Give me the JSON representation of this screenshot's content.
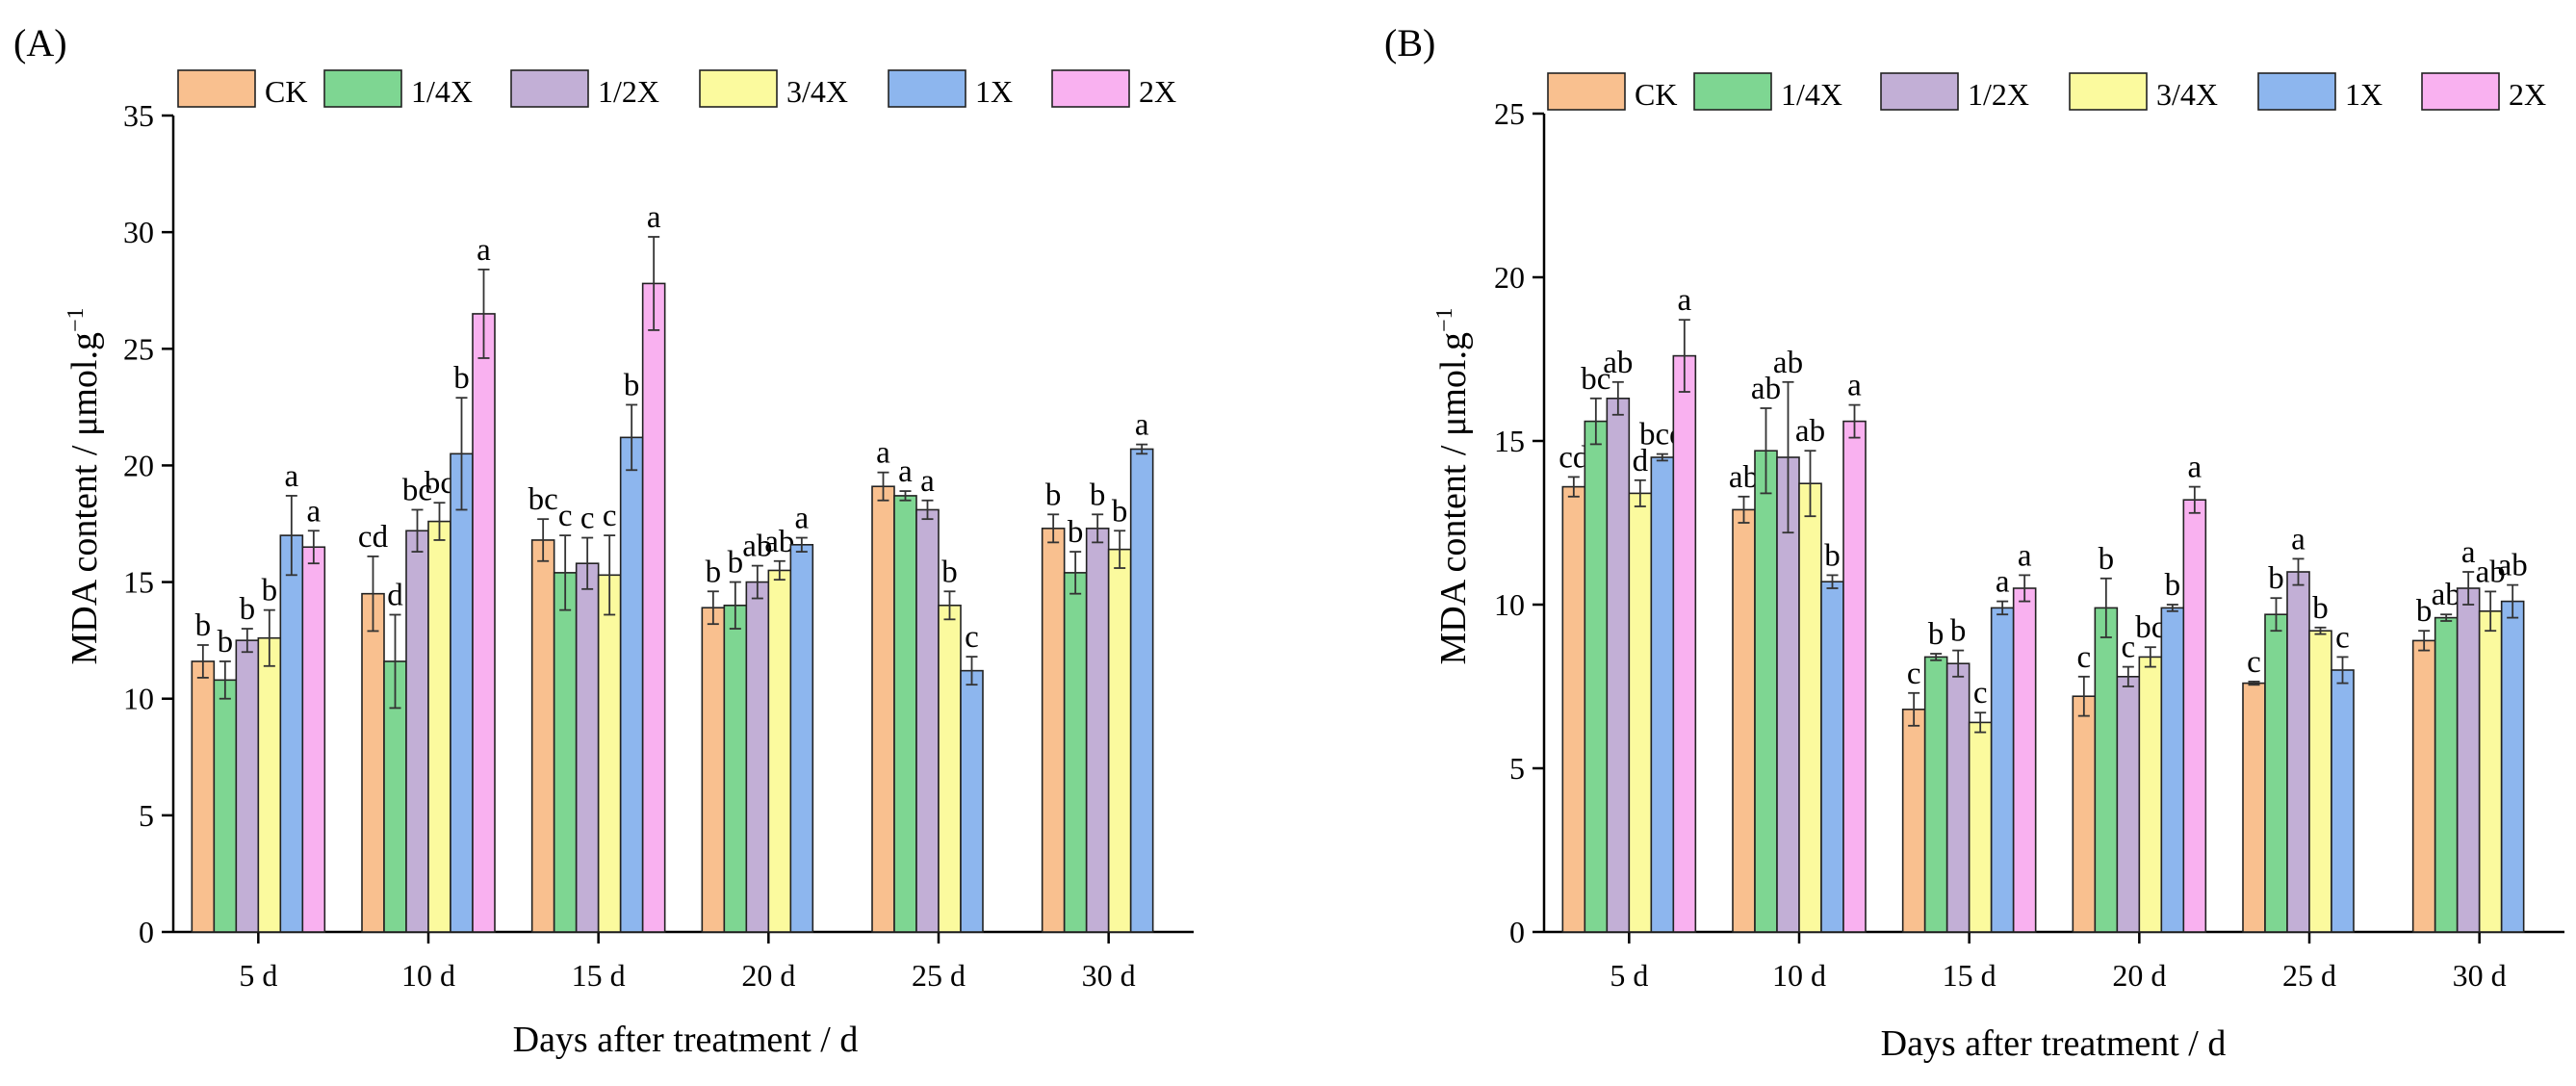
{
  "legend": {
    "series": [
      {
        "name": "CK",
        "color": "#F9C08F"
      },
      {
        "name": "1/4X",
        "color": "#7ED692"
      },
      {
        "name": "1/2X",
        "color": "#C2AFD6"
      },
      {
        "name": "3/4X",
        "color": "#FBFA9E"
      },
      {
        "name": "1X",
        "color": "#8DB6EE"
      },
      {
        "name": "2X",
        "color": "#F9B1F0"
      }
    ]
  },
  "chart_data": [
    {
      "type": "bar",
      "panel_label": "(A)",
      "categories": [
        "5 d",
        "10 d",
        "15 d",
        "20 d",
        "25 d",
        "30 d"
      ],
      "xlabel": "Days after treatment / d",
      "ylabel": "MDA content / μmol.g",
      "ylabel_sup": "−1",
      "ylim": [
        0,
        35
      ],
      "yticks": [
        0,
        5,
        10,
        15,
        20,
        25,
        30,
        35
      ],
      "legend_position": "top",
      "series": [
        {
          "name": "CK",
          "values": [
            11.6,
            14.5,
            16.8,
            13.9,
            19.1,
            17.3
          ],
          "errors": [
            0.7,
            1.6,
            0.9,
            0.7,
            0.6,
            0.6
          ],
          "letters": [
            "b",
            "cd",
            "bc",
            "b",
            "a",
            "b"
          ]
        },
        {
          "name": "1/4X",
          "values": [
            10.8,
            11.6,
            15.4,
            14.0,
            18.7,
            15.4
          ],
          "errors": [
            0.8,
            2.0,
            1.6,
            1.0,
            0.2,
            0.9
          ],
          "letters": [
            "b",
            "d",
            "c",
            "b",
            "a",
            "b"
          ]
        },
        {
          "name": "1/2X",
          "values": [
            12.5,
            17.2,
            15.8,
            15.0,
            18.1,
            17.3
          ],
          "errors": [
            0.5,
            0.9,
            1.1,
            0.7,
            0.4,
            0.6
          ],
          "letters": [
            "b",
            "bc",
            "c",
            "ab",
            "a",
            "b"
          ]
        },
        {
          "name": "3/4X",
          "values": [
            12.6,
            17.6,
            15.3,
            15.5,
            14.0,
            16.4
          ],
          "errors": [
            1.2,
            0.8,
            1.7,
            0.4,
            0.6,
            0.8
          ],
          "letters": [
            "b",
            "bc",
            "c",
            "ab",
            "b",
            "b"
          ]
        },
        {
          "name": "1X",
          "values": [
            17.0,
            20.5,
            21.2,
            16.6,
            11.2,
            20.7
          ],
          "errors": [
            1.7,
            2.4,
            1.4,
            0.3,
            0.6,
            0.2
          ],
          "letters": [
            "a",
            "b",
            "b",
            "a",
            "c",
            "a"
          ]
        },
        {
          "name": "2X",
          "values": [
            16.5,
            26.5,
            27.8,
            null,
            null,
            null
          ],
          "errors": [
            0.7,
            1.9,
            2.0,
            null,
            null,
            null
          ],
          "letters": [
            "a",
            "a",
            "a",
            "",
            "",
            ""
          ]
        }
      ]
    },
    {
      "type": "bar",
      "panel_label": "(B)",
      "categories": [
        "5 d",
        "10 d",
        "15 d",
        "20 d",
        "25 d",
        "30 d"
      ],
      "xlabel": "Days after treatment / d",
      "ylabel": "MDA content / μmol.g",
      "ylabel_sup": "−1",
      "ylim": [
        0,
        25
      ],
      "yticks": [
        0,
        5,
        10,
        15,
        20,
        25
      ],
      "legend_position": "top",
      "series": [
        {
          "name": "CK",
          "values": [
            13.6,
            12.9,
            6.8,
            7.2,
            7.6,
            8.9
          ],
          "errors": [
            0.3,
            0.4,
            0.5,
            0.6,
            0.05,
            0.3
          ],
          "letters": [
            "cd",
            "ab",
            "c",
            "c",
            "c",
            "b"
          ]
        },
        {
          "name": "1/4X",
          "values": [
            15.6,
            14.7,
            8.4,
            9.9,
            9.7,
            9.6
          ],
          "errors": [
            0.7,
            1.3,
            0.1,
            0.9,
            0.5,
            0.1
          ],
          "letters": [
            "bc",
            "ab",
            "b",
            "b",
            "b",
            "ab"
          ]
        },
        {
          "name": "1/2X",
          "values": [
            16.3,
            14.5,
            8.2,
            7.8,
            11.0,
            10.5
          ],
          "errors": [
            0.5,
            2.3,
            0.4,
            0.3,
            0.4,
            0.5
          ],
          "letters": [
            "ab",
            "ab",
            "b",
            "c",
            "a",
            "a"
          ]
        },
        {
          "name": "3/4X",
          "values": [
            13.4,
            13.7,
            6.4,
            8.4,
            9.2,
            9.8
          ],
          "errors": [
            0.4,
            1.0,
            0.3,
            0.3,
            0.1,
            0.6
          ],
          "letters": [
            "d",
            "ab",
            "c",
            "bc",
            "b",
            "ab"
          ]
        },
        {
          "name": "1X",
          "values": [
            14.5,
            10.7,
            9.9,
            9.9,
            8.0,
            10.1
          ],
          "errors": [
            0.1,
            0.2,
            0.2,
            0.1,
            0.4,
            0.5
          ],
          "letters": [
            "bcd",
            "b",
            "a",
            "b",
            "c",
            "ab"
          ]
        },
        {
          "name": "2X",
          "values": [
            17.6,
            15.6,
            10.5,
            13.2,
            null,
            null
          ],
          "errors": [
            1.1,
            0.5,
            0.4,
            0.4,
            null,
            null
          ],
          "letters": [
            "a",
            "a",
            "a",
            "a",
            "",
            ""
          ]
        }
      ]
    }
  ]
}
